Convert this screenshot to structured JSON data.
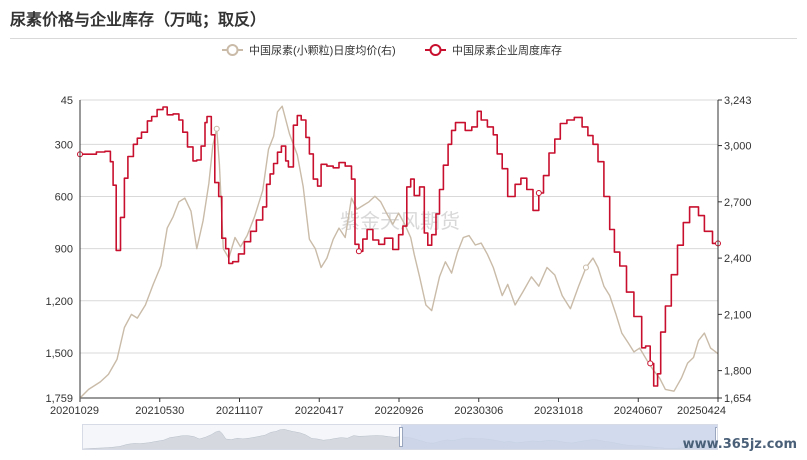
{
  "page": {
    "title": "尿素价格与企业库存（万吨；取反）",
    "watermark": "www.365jz.com"
  },
  "chart_data": {
    "type": "line",
    "center_watermark": "紫金天风期货",
    "x_tick_labels": [
      "20201029",
      "20210530",
      "20211107",
      "20220417",
      "20220926",
      "20230306",
      "20231018",
      "20240607",
      "20250424"
    ],
    "x_range": [
      "2020-10-29",
      "2025-04-24"
    ],
    "left_axis": {
      "reversed": true,
      "range": [
        45,
        1759
      ],
      "ticks": [
        45,
        300,
        600,
        900,
        1200,
        1500,
        1759
      ],
      "tick_labels": [
        "45",
        "300",
        "600",
        "900",
        "1,200",
        "1,500",
        "1,759"
      ]
    },
    "right_axis": {
      "range": [
        1654,
        3243
      ],
      "ticks": [
        1654,
        1800,
        2100,
        2400,
        2700,
        3000,
        3243
      ],
      "tick_labels": [
        "1,654",
        "1,800",
        "2,100",
        "2,400",
        "2,700",
        "3,000",
        "3,243"
      ]
    },
    "grid": true,
    "legend_position": "top-center",
    "series": [
      {
        "name": "中国尿素(小颗粒)日度均价(右)",
        "axis": "right",
        "color": "#c9bba8",
        "points": [
          [
            "2020-10-29",
            1654
          ],
          [
            "2020-11-20",
            1700
          ],
          [
            "2020-12-20",
            1740
          ],
          [
            "2021-01-10",
            1780
          ],
          [
            "2021-02-01",
            1860
          ],
          [
            "2021-02-20",
            2030
          ],
          [
            "2021-03-10",
            2100
          ],
          [
            "2021-03-25",
            2080
          ],
          [
            "2021-04-15",
            2150
          ],
          [
            "2021-05-05",
            2260
          ],
          [
            "2021-05-25",
            2360
          ],
          [
            "2021-06-10",
            2560
          ],
          [
            "2021-06-25",
            2620
          ],
          [
            "2021-07-10",
            2700
          ],
          [
            "2021-07-25",
            2720
          ],
          [
            "2021-08-10",
            2650
          ],
          [
            "2021-08-25",
            2450
          ],
          [
            "2021-09-10",
            2600
          ],
          [
            "2021-09-25",
            2800
          ],
          [
            "2021-10-05",
            3000
          ],
          [
            "2021-10-15",
            3090
          ],
          [
            "2021-10-22",
            2900
          ],
          [
            "2021-11-01",
            2450
          ],
          [
            "2021-11-15",
            2400
          ],
          [
            "2021-12-01",
            2510
          ],
          [
            "2021-12-15",
            2460
          ],
          [
            "2022-01-01",
            2520
          ],
          [
            "2022-01-20",
            2620
          ],
          [
            "2022-02-10",
            2760
          ],
          [
            "2022-02-25",
            2980
          ],
          [
            "2022-03-10",
            3050
          ],
          [
            "2022-03-20",
            3180
          ],
          [
            "2022-04-01",
            3210
          ],
          [
            "2022-04-20",
            3060
          ],
          [
            "2022-05-10",
            2950
          ],
          [
            "2022-05-25",
            2780
          ],
          [
            "2022-06-10",
            2500
          ],
          [
            "2022-06-25",
            2450
          ],
          [
            "2022-07-10",
            2350
          ],
          [
            "2022-07-25",
            2400
          ],
          [
            "2022-08-10",
            2500
          ],
          [
            "2022-08-25",
            2560
          ],
          [
            "2022-09-10",
            2510
          ],
          [
            "2022-09-26",
            2720
          ],
          [
            "2022-10-10",
            2660
          ],
          [
            "2022-10-25",
            2680
          ],
          [
            "2022-11-10",
            2700
          ],
          [
            "2022-11-25",
            2730
          ],
          [
            "2022-12-10",
            2700
          ],
          [
            "2022-12-25",
            2640
          ],
          [
            "2023-01-10",
            2580
          ],
          [
            "2023-01-25",
            2640
          ],
          [
            "2023-02-10",
            2580
          ],
          [
            "2023-02-25",
            2510
          ],
          [
            "2023-03-06",
            2420
          ],
          [
            "2023-03-20",
            2300
          ],
          [
            "2023-04-05",
            2150
          ],
          [
            "2023-04-20",
            2120
          ],
          [
            "2023-05-10",
            2300
          ],
          [
            "2023-05-25",
            2380
          ],
          [
            "2023-06-10",
            2320
          ],
          [
            "2023-06-25",
            2430
          ],
          [
            "2023-07-10",
            2510
          ],
          [
            "2023-07-25",
            2520
          ],
          [
            "2023-08-10",
            2470
          ],
          [
            "2023-08-25",
            2480
          ],
          [
            "2023-09-10",
            2420
          ],
          [
            "2023-09-25",
            2350
          ],
          [
            "2023-10-18",
            2200
          ],
          [
            "2023-11-01",
            2260
          ],
          [
            "2023-11-20",
            2150
          ],
          [
            "2023-12-10",
            2220
          ],
          [
            "2024-01-01",
            2300
          ],
          [
            "2024-01-20",
            2250
          ],
          [
            "2024-02-10",
            2350
          ],
          [
            "2024-03-01",
            2310
          ],
          [
            "2024-03-20",
            2200
          ],
          [
            "2024-04-10",
            2130
          ],
          [
            "2024-05-01",
            2250
          ],
          [
            "2024-05-20",
            2350
          ],
          [
            "2024-06-07",
            2400
          ],
          [
            "2024-06-20",
            2350
          ],
          [
            "2024-07-05",
            2250
          ],
          [
            "2024-07-20",
            2200
          ],
          [
            "2024-08-05",
            2100
          ],
          [
            "2024-08-20",
            2000
          ],
          [
            "2024-09-05",
            1950
          ],
          [
            "2024-09-20",
            1900
          ],
          [
            "2024-10-05",
            1920
          ],
          [
            "2024-10-25",
            1850
          ],
          [
            "2024-11-10",
            1800
          ],
          [
            "2024-11-25",
            1760
          ],
          [
            "2024-12-10",
            1700
          ],
          [
            "2025-01-01",
            1690
          ],
          [
            "2025-01-20",
            1760
          ],
          [
            "2025-02-05",
            1840
          ],
          [
            "2025-02-20",
            1870
          ],
          [
            "2025-03-05",
            1960
          ],
          [
            "2025-03-20",
            2000
          ],
          [
            "2025-04-05",
            1920
          ],
          [
            "2025-04-24",
            1890
          ]
        ]
      },
      {
        "name": "中国尿素企业周度库存",
        "axis": "left",
        "color": "#c8102e",
        "points": [
          [
            "2020-10-29",
            357
          ],
          [
            "2020-11-20",
            357
          ],
          [
            "2020-12-10",
            344
          ],
          [
            "2021-01-01",
            340
          ],
          [
            "2021-01-15",
            400
          ],
          [
            "2021-01-22",
            535
          ],
          [
            "2021-01-30",
            910
          ],
          [
            "2021-02-10",
            720
          ],
          [
            "2021-02-20",
            495
          ],
          [
            "2021-03-01",
            370
          ],
          [
            "2021-03-15",
            300
          ],
          [
            "2021-03-25",
            265
          ],
          [
            "2021-04-05",
            230
          ],
          [
            "2021-04-20",
            165
          ],
          [
            "2021-05-01",
            140
          ],
          [
            "2021-05-15",
            100
          ],
          [
            "2021-05-30",
            85
          ],
          [
            "2021-06-10",
            130
          ],
          [
            "2021-06-25",
            125
          ],
          [
            "2021-07-10",
            160
          ],
          [
            "2021-07-20",
            230
          ],
          [
            "2021-08-01",
            315
          ],
          [
            "2021-08-15",
            395
          ],
          [
            "2021-08-25",
            390
          ],
          [
            "2021-09-05",
            310
          ],
          [
            "2021-09-15",
            175
          ],
          [
            "2021-09-20",
            140
          ],
          [
            "2021-10-01",
            245
          ],
          [
            "2021-10-10",
            520
          ],
          [
            "2021-10-20",
            600
          ],
          [
            "2021-10-28",
            840
          ],
          [
            "2021-11-07",
            900
          ],
          [
            "2021-11-15",
            985
          ],
          [
            "2021-11-25",
            975
          ],
          [
            "2021-12-10",
            930
          ],
          [
            "2021-12-25",
            860
          ],
          [
            "2022-01-10",
            800
          ],
          [
            "2022-01-25",
            735
          ],
          [
            "2022-02-10",
            660
          ],
          [
            "2022-02-20",
            530
          ],
          [
            "2022-03-01",
            470
          ],
          [
            "2022-03-10",
            410
          ],
          [
            "2022-03-20",
            345
          ],
          [
            "2022-03-30",
            310
          ],
          [
            "2022-04-10",
            395
          ],
          [
            "2022-04-17",
            430
          ],
          [
            "2022-04-30",
            190
          ],
          [
            "2022-05-10",
            135
          ],
          [
            "2022-05-20",
            160
          ],
          [
            "2022-06-01",
            260
          ],
          [
            "2022-06-10",
            355
          ],
          [
            "2022-06-20",
            500
          ],
          [
            "2022-07-01",
            540
          ],
          [
            "2022-07-10",
            415
          ],
          [
            "2022-07-25",
            425
          ],
          [
            "2022-08-10",
            435
          ],
          [
            "2022-08-25",
            405
          ],
          [
            "2022-09-10",
            425
          ],
          [
            "2022-09-26",
            500
          ],
          [
            "2022-10-05",
            875
          ],
          [
            "2022-10-15",
            915
          ],
          [
            "2022-10-25",
            845
          ],
          [
            "2022-11-05",
            790
          ],
          [
            "2022-11-20",
            850
          ],
          [
            "2022-12-05",
            875
          ],
          [
            "2022-12-20",
            840
          ],
          [
            "2023-01-10",
            905
          ],
          [
            "2023-01-25",
            820
          ],
          [
            "2023-02-05",
            770
          ],
          [
            "2023-02-15",
            545
          ],
          [
            "2023-02-25",
            500
          ],
          [
            "2023-03-06",
            595
          ],
          [
            "2023-03-20",
            545
          ],
          [
            "2023-04-01",
            810
          ],
          [
            "2023-04-10",
            880
          ],
          [
            "2023-04-20",
            820
          ],
          [
            "2023-05-01",
            700
          ],
          [
            "2023-05-10",
            560
          ],
          [
            "2023-05-20",
            420
          ],
          [
            "2023-06-01",
            300
          ],
          [
            "2023-06-10",
            220
          ],
          [
            "2023-06-20",
            175
          ],
          [
            "2023-07-01",
            175
          ],
          [
            "2023-07-15",
            220
          ],
          [
            "2023-08-01",
            200
          ],
          [
            "2023-08-15",
            110
          ],
          [
            "2023-08-25",
            160
          ],
          [
            "2023-09-10",
            200
          ],
          [
            "2023-09-25",
            245
          ],
          [
            "2023-10-05",
            355
          ],
          [
            "2023-10-18",
            440
          ],
          [
            "2023-11-01",
            600
          ],
          [
            "2023-11-20",
            530
          ],
          [
            "2023-12-05",
            495
          ],
          [
            "2023-12-20",
            560
          ],
          [
            "2024-01-05",
            680
          ],
          [
            "2024-01-20",
            580
          ],
          [
            "2024-02-01",
            480
          ],
          [
            "2024-02-15",
            350
          ],
          [
            "2024-03-01",
            270
          ],
          [
            "2024-03-15",
            180
          ],
          [
            "2024-04-01",
            160
          ],
          [
            "2024-04-20",
            145
          ],
          [
            "2024-05-10",
            200
          ],
          [
            "2024-05-25",
            250
          ],
          [
            "2024-06-07",
            300
          ],
          [
            "2024-06-20",
            400
          ],
          [
            "2024-07-05",
            600
          ],
          [
            "2024-07-20",
            790
          ],
          [
            "2024-08-01",
            920
          ],
          [
            "2024-08-15",
            1000
          ],
          [
            "2024-09-01",
            1150
          ],
          [
            "2024-09-20",
            1290
          ],
          [
            "2024-10-10",
            1470
          ],
          [
            "2024-10-20",
            1460
          ],
          [
            "2024-11-01",
            1560
          ],
          [
            "2024-11-10",
            1690
          ],
          [
            "2024-11-20",
            1620
          ],
          [
            "2024-11-28",
            1380
          ],
          [
            "2024-12-10",
            1230
          ],
          [
            "2024-12-25",
            1050
          ],
          [
            "2025-01-10",
            880
          ],
          [
            "2025-01-25",
            750
          ],
          [
            "2025-02-10",
            660
          ],
          [
            "2025-02-25",
            660
          ],
          [
            "2025-03-05",
            710
          ],
          [
            "2025-03-20",
            800
          ],
          [
            "2025-04-10",
            870
          ],
          [
            "2025-04-24",
            870
          ]
        ]
      }
    ]
  },
  "slider": {
    "range_start": 0.5,
    "range_end": 1.0
  }
}
